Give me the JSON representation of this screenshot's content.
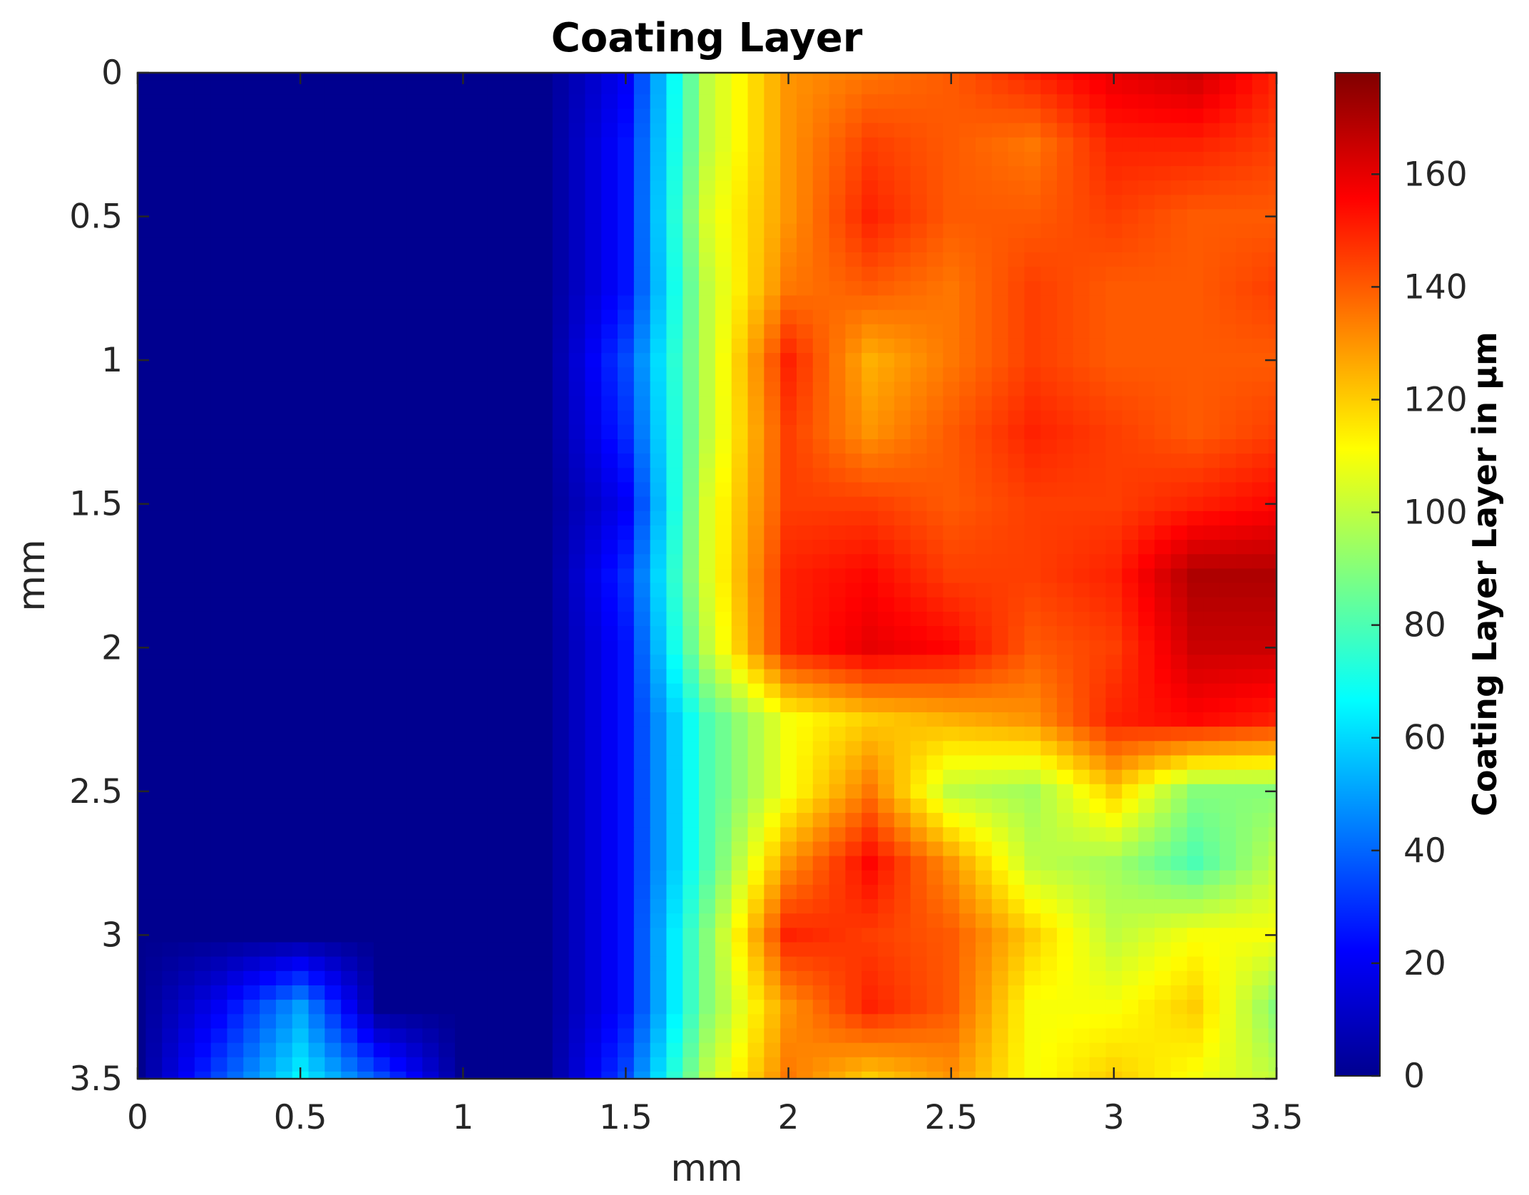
{
  "chart_data": {
    "type": "heatmap",
    "title": "Coating Layer",
    "xlabel": "mm",
    "ylabel": "mm",
    "xlim": [
      0,
      3.5
    ],
    "ylim": [
      0,
      3.5
    ],
    "y_reversed": true,
    "x_ticks": [
      "0",
      "0.5",
      "1",
      "1.5",
      "2",
      "2.5",
      "3",
      "3.5"
    ],
    "y_ticks": [
      "0",
      "0.5",
      "1",
      "1.5",
      "2",
      "2.5",
      "3",
      "3.5"
    ],
    "colormap": "jet",
    "colorbar": {
      "label": "Coating Layer Layer in μm",
      "range": [
        0,
        178
      ],
      "ticks": [
        "0",
        "20",
        "40",
        "60",
        "80",
        "100",
        "120",
        "140",
        "160"
      ]
    },
    "grid_x": [
      0,
      0.25,
      0.5,
      0.75,
      1.0,
      1.25,
      1.5,
      1.75,
      2.0,
      2.25,
      2.5,
      2.75,
      3.0,
      3.25,
      3.5
    ],
    "grid_y": [
      0,
      0.25,
      0.5,
      0.75,
      1.0,
      1.25,
      1.5,
      1.75,
      2.0,
      2.25,
      2.5,
      2.75,
      3.0,
      3.25,
      3.5
    ],
    "values": [
      [
        0,
        0,
        0,
        0,
        0,
        0,
        20,
        100,
        130,
        135,
        140,
        150,
        160,
        165,
        150
      ],
      [
        0,
        0,
        0,
        0,
        0,
        0,
        25,
        100,
        130,
        145,
        140,
        135,
        150,
        150,
        145
      ],
      [
        0,
        0,
        0,
        0,
        0,
        0,
        25,
        105,
        130,
        150,
        140,
        140,
        145,
        140,
        140
      ],
      [
        0,
        0,
        0,
        0,
        0,
        0,
        25,
        100,
        135,
        140,
        135,
        145,
        140,
        140,
        145
      ],
      [
        0,
        0,
        0,
        0,
        0,
        0,
        35,
        100,
        150,
        125,
        135,
        145,
        140,
        140,
        140
      ],
      [
        0,
        0,
        0,
        0,
        0,
        0,
        30,
        100,
        145,
        130,
        140,
        150,
        145,
        140,
        145
      ],
      [
        0,
        0,
        0,
        0,
        0,
        0,
        20,
        105,
        145,
        145,
        140,
        145,
        145,
        150,
        155
      ],
      [
        0,
        0,
        0,
        0,
        0,
        0,
        30,
        105,
        150,
        155,
        145,
        145,
        150,
        170,
        170
      ],
      [
        0,
        0,
        0,
        0,
        0,
        0,
        25,
        100,
        150,
        160,
        155,
        140,
        145,
        165,
        165
      ],
      [
        0,
        0,
        0,
        0,
        0,
        0,
        25,
        80,
        110,
        120,
        125,
        130,
        150,
        155,
        150
      ],
      [
        0,
        0,
        0,
        0,
        0,
        0,
        25,
        80,
        110,
        135,
        100,
        95,
        120,
        90,
        90
      ],
      [
        0,
        0,
        0,
        0,
        0,
        0,
        25,
        80,
        130,
        155,
        130,
        100,
        95,
        80,
        100
      ],
      [
        0,
        0,
        0,
        0,
        0,
        0,
        25,
        90,
        150,
        145,
        140,
        120,
        100,
        110,
        110
      ],
      [
        0,
        20,
        50,
        0,
        0,
        0,
        25,
        90,
        130,
        150,
        140,
        110,
        110,
        120,
        90
      ],
      [
        0,
        35,
        65,
        35,
        0,
        0,
        35,
        100,
        135,
        120,
        130,
        110,
        120,
        110,
        100
      ]
    ]
  }
}
